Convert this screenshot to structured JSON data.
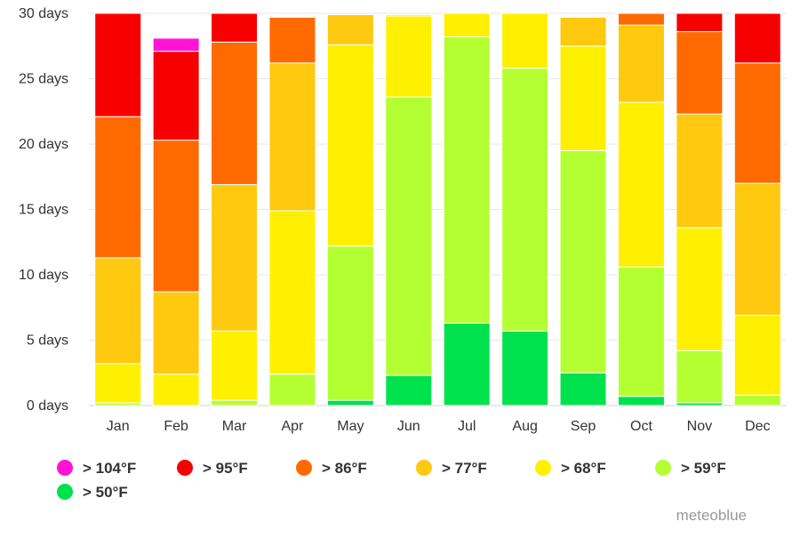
{
  "chart_data": {
    "type": "bar",
    "stacked": true,
    "categories": [
      "Jan",
      "Feb",
      "Mar",
      "Apr",
      "May",
      "Jun",
      "Jul",
      "Aug",
      "Sep",
      "Oct",
      "Nov",
      "Dec"
    ],
    "ylim": [
      0,
      30
    ],
    "yticks": [
      0,
      5,
      10,
      15,
      20,
      25,
      30
    ],
    "ytick_labels": [
      "0 days",
      "5 days",
      "10 days",
      "15 days",
      "20 days",
      "25 days",
      "30 days"
    ],
    "grid": true,
    "legend_position": "bottom-left",
    "series": [
      {
        "name": "> 50°F",
        "color": "#00e24d",
        "values": [
          0,
          0,
          0,
          0,
          0.4,
          2.3,
          6.3,
          5.7,
          2.5,
          0.7,
          0.2,
          0
        ]
      },
      {
        "name": "> 59°F",
        "color": "#b4ff32",
        "values": [
          0.2,
          0,
          0.4,
          2.4,
          11.8,
          21.3,
          21.9,
          20.1,
          17.0,
          9.9,
          4.0,
          0.8
        ]
      },
      {
        "name": "> 68°F",
        "color": "#ffef00",
        "values": [
          3.0,
          2.4,
          5.3,
          12.5,
          15.4,
          6.2,
          1.9,
          4.4,
          8.0,
          12.6,
          9.4,
          6.1
        ]
      },
      {
        "name": "> 77°F",
        "color": "#ffc90f",
        "values": [
          8.1,
          6.3,
          11.2,
          11.3,
          2.3,
          0.1,
          0,
          0,
          2.2,
          5.9,
          8.7,
          10.1
        ]
      },
      {
        "name": "> 86°F",
        "color": "#ff6a00",
        "values": [
          10.8,
          11.6,
          10.9,
          3.5,
          0,
          0,
          0,
          0,
          0,
          0.9,
          6.3,
          9.2
        ]
      },
      {
        "name": "> 95°F",
        "color": "#f70000",
        "values": [
          7.9,
          6.8,
          2.3,
          0,
          0,
          0,
          0,
          0,
          0,
          0,
          1.4,
          3.8
        ]
      },
      {
        "name": "> 104°F",
        "color": "#ff14d6",
        "values": [
          0,
          1.0,
          0,
          0,
          0,
          0,
          0,
          0,
          0,
          0,
          0,
          0
        ]
      }
    ]
  },
  "legend": {
    "order": [
      "> 104°F",
      "> 95°F",
      "> 86°F",
      "> 77°F",
      "> 68°F",
      "> 59°F",
      "> 50°F"
    ]
  },
  "branding": {
    "credit": "meteoblue"
  },
  "colors": {
    "grid": "#e6e6e6",
    "axis": "#d0d0d0",
    "text": "#333333",
    "credit": "#999999"
  }
}
